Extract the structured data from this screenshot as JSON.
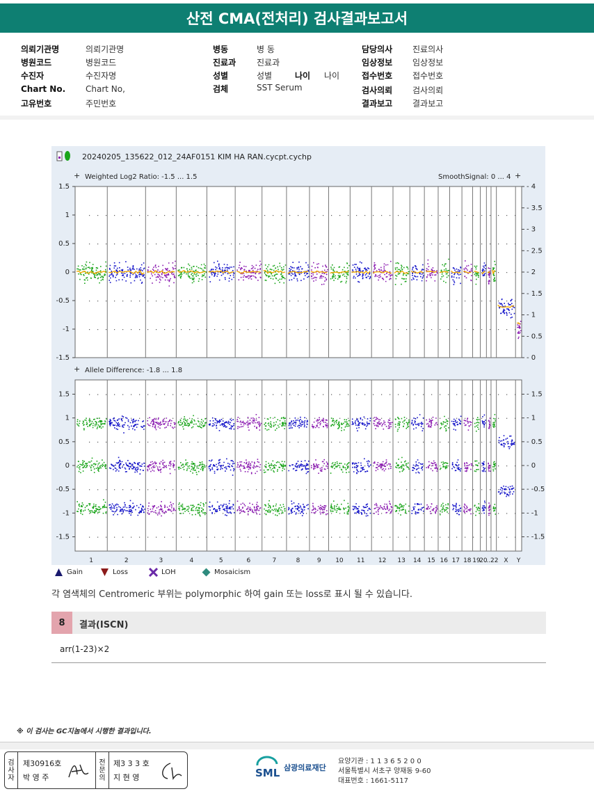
{
  "report_title": "산전 CMA(전처리) 검사결과보고서",
  "header": {
    "col1": [
      {
        "k": "의뢰기관명",
        "v": "의뢰기관명"
      },
      {
        "k": "병원코드",
        "v": "병원코드"
      },
      {
        "k": "수진자",
        "v": "수진자명"
      },
      {
        "k": "Chart No.",
        "v": "Chart No,"
      },
      {
        "k": "고유번호",
        "v": "주민번호"
      }
    ],
    "col2": [
      {
        "k": "병동",
        "v": "병 동"
      },
      {
        "k": "진료과",
        "v": "진료과"
      },
      {
        "k": "성별",
        "v": "성별"
      },
      {
        "k": "검체",
        "v": "SST Serum"
      }
    ],
    "age_k": "나이",
    "age_v": "나이",
    "col3": [
      {
        "k": "담당의사",
        "v": "진료의사"
      },
      {
        "k": "임상정보",
        "v": "임상정보"
      },
      {
        "k": "접수번호",
        "v": "접수번호"
      },
      {
        "k": "검사의뢰",
        "v": "검사의뢰"
      },
      {
        "k": "결과보고",
        "v": "결과보고"
      }
    ]
  },
  "chart_data": [
    {
      "type": "scatter",
      "title": "20240205_135622_012_24AF0151 KIM HA RAN.cycpt.cychp",
      "panel_label": "Weighted Log2 Ratio: -1.5 ... 1.5",
      "smooth_label": "SmoothSignal: 0 ... 4",
      "ylim": [
        -1.5,
        1.5
      ],
      "yticks": [
        "1.5",
        "1",
        "0.5",
        "0",
        "-0.5",
        "-1",
        "-1.5"
      ],
      "y2lim": [
        0,
        4
      ],
      "y2ticks": [
        "4",
        "3.5",
        "3",
        "2.5",
        "2",
        "1.5",
        "1",
        "0.5",
        "0"
      ],
      "chromosomes": [
        "1",
        "2",
        "3",
        "4",
        "5",
        "6",
        "7",
        "8",
        "9",
        "10",
        "11",
        "12",
        "13",
        "14",
        "15",
        "16",
        "17",
        "18",
        "19",
        "20",
        "21",
        "22",
        "X",
        "Y"
      ],
      "series_colors": [
        "#1aa51a",
        "#1010c8",
        "#8a1ab0"
      ],
      "smooth_color": "#f2a900",
      "log2_ratio_level": [
        0,
        0,
        0,
        0,
        0,
        0,
        0,
        0,
        0,
        0,
        0,
        0,
        0,
        0,
        0,
        0,
        0,
        0,
        0,
        0,
        0,
        0,
        -0.6,
        -1.0
      ],
      "smooth_signal_level": [
        2,
        2,
        2,
        2,
        2,
        2,
        2,
        2,
        2,
        2,
        2,
        2,
        2,
        2,
        2,
        2,
        2,
        2,
        2,
        2,
        2,
        2,
        1.2,
        0.8
      ]
    },
    {
      "type": "scatter",
      "panel_label": "Allele Difference: -1.8 ... 1.8",
      "ylim": [
        -1.8,
        1.8
      ],
      "yticks": [
        "1.5",
        "1",
        "0.5",
        "0",
        "-0.5",
        "-1",
        "-1.5"
      ],
      "y2ticks": [
        "1.5",
        "1",
        "0.5",
        "0",
        "-0.5",
        "-1",
        "-1.5"
      ],
      "chromosomes": [
        "1",
        "2",
        "3",
        "4",
        "5",
        "6",
        "7",
        "8",
        "9",
        "10",
        "11",
        "12",
        "13",
        "14",
        "15",
        "16",
        "17",
        "18",
        "19",
        "20",
        "...22",
        "X",
        "Y"
      ],
      "bands": [
        0.9,
        0,
        -0.9
      ],
      "x_bands": [
        0.5,
        -0.5
      ]
    }
  ],
  "legend": [
    {
      "icon": "gain-triangle-icon",
      "label": "Gain",
      "color": "#1a1a6e"
    },
    {
      "icon": "loss-triangle-icon",
      "label": "Loss",
      "color": "#8b1a1a"
    },
    {
      "icon": "loh-cross-icon",
      "label": "LOH",
      "color": "#6a2aa8"
    },
    {
      "icon": "mosaicism-diamond-icon",
      "label": "Mosaicism",
      "color": "#2e8b7e"
    }
  ],
  "note": "각 염색체의 Centromeric 부위는 polymorphic 하여 gain 또는 loss로 표시 될 수 있습니다.",
  "section": {
    "number": "8",
    "title": "결과(ISCN)"
  },
  "result": "arr(1-23)×2",
  "footnote": "※ 이 검사는 GC지놈에서 시행한 결과입니다.",
  "signature": {
    "left_label": "검사자",
    "left_no": "제30916호",
    "left_name": "박 영 주",
    "right_label": "전문의",
    "right_no": "제3 3 3 호",
    "right_name": "지 현 영"
  },
  "org": {
    "logo": "SML",
    "name": "삼광의료재단",
    "line1": "요양기관 : 1 1 3 6 5 2 0 0",
    "line2": "서울특별시 서초구 양재동 9-60",
    "line3": "대표번호 : 1661-5117"
  }
}
